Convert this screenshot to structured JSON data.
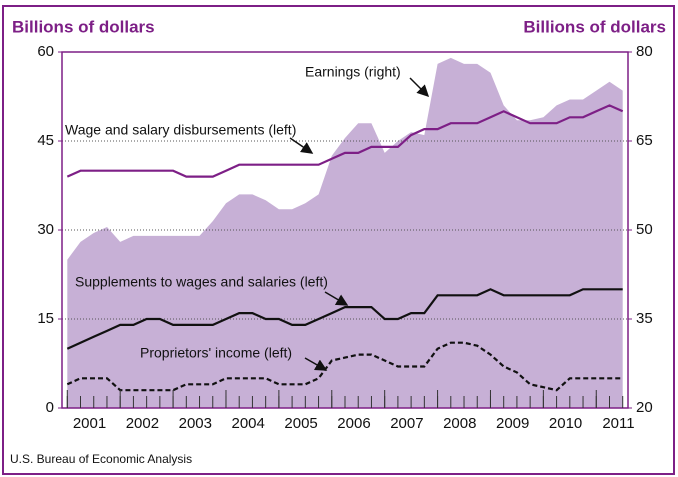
{
  "chart_data": {
    "type": "line",
    "y_label": "Billions of dollars",
    "y2_label": "Billions of dollars",
    "source": "U.S. Bureau of Economic Analysis",
    "x": [
      2001,
      2001.25,
      2001.5,
      2001.75,
      2002,
      2002.25,
      2002.5,
      2002.75,
      2003,
      2003.25,
      2003.5,
      2003.75,
      2004,
      2004.25,
      2004.5,
      2004.75,
      2005,
      2005.25,
      2005.5,
      2005.75,
      2006,
      2006.25,
      2006.5,
      2006.75,
      2007,
      2007.25,
      2007.5,
      2007.75,
      2008,
      2008.25,
      2008.5,
      2008.75,
      2009,
      2009.25,
      2009.5,
      2009.75,
      2010,
      2010.25,
      2010.5,
      2010.75,
      2011,
      2011.25,
      2011.5
    ],
    "xlim": [
      2000.9,
      2011.6
    ],
    "xticks": [
      2001,
      2002,
      2003,
      2004,
      2005,
      2006,
      2007,
      2008,
      2009,
      2010,
      2011
    ],
    "ylim": [
      0,
      60
    ],
    "yticks": [
      0,
      15,
      30,
      45,
      60
    ],
    "y2lim": [
      20,
      80
    ],
    "y2ticks": [
      20,
      35,
      50,
      65,
      80
    ],
    "grid": true,
    "series": [
      {
        "name": "Earnings (right)",
        "axis": "y2",
        "fill": true,
        "color": "#c7b0d6",
        "values": [
          45,
          48,
          49.5,
          50.5,
          48,
          49,
          49,
          49,
          49,
          49,
          49,
          51.5,
          54.5,
          56,
          56,
          55,
          53.5,
          53.5,
          54.5,
          56,
          62.5,
          65.5,
          68,
          68,
          63,
          65,
          66.5,
          66,
          78,
          79,
          78,
          78,
          76.5,
          71,
          68.5,
          68.5,
          69,
          71,
          72,
          72,
          73.5,
          75,
          73.5
        ]
      },
      {
        "name": "Wage and salary disbursements (left)",
        "color": "#7d1f86",
        "values": [
          39,
          40,
          40,
          40,
          40,
          40,
          40,
          40,
          40,
          39,
          39,
          39,
          40,
          41,
          41,
          41,
          41,
          41,
          41,
          41,
          42,
          43,
          43,
          44,
          44,
          44,
          46,
          47,
          47,
          48,
          48,
          48,
          49,
          50,
          49,
          48,
          48,
          48,
          49,
          49,
          50,
          51,
          50
        ]
      },
      {
        "name": "Supplements to wages and salaries (left)",
        "color": "#111111",
        "values": [
          10,
          11,
          12,
          13,
          14,
          14,
          15,
          15,
          14,
          14,
          14,
          14,
          15,
          16,
          16,
          15,
          15,
          14,
          14,
          15,
          16,
          17,
          17,
          17,
          15,
          15,
          16,
          16,
          19,
          19,
          19,
          19,
          20,
          19,
          19,
          19,
          19,
          19,
          19,
          20,
          20,
          20,
          20
        ]
      },
      {
        "name": "Proprietors' income (left)",
        "color": "#111111",
        "dash": true,
        "values": [
          4,
          5,
          5,
          5,
          3,
          3,
          3,
          3,
          3,
          4,
          4,
          4,
          5,
          5,
          5,
          5,
          4,
          4,
          4,
          5,
          8,
          8.5,
          9,
          9,
          8,
          7,
          7,
          7,
          10,
          11,
          11,
          10.5,
          9,
          7,
          6,
          4,
          3.5,
          3,
          5,
          5,
          5,
          5,
          5
        ]
      }
    ]
  }
}
